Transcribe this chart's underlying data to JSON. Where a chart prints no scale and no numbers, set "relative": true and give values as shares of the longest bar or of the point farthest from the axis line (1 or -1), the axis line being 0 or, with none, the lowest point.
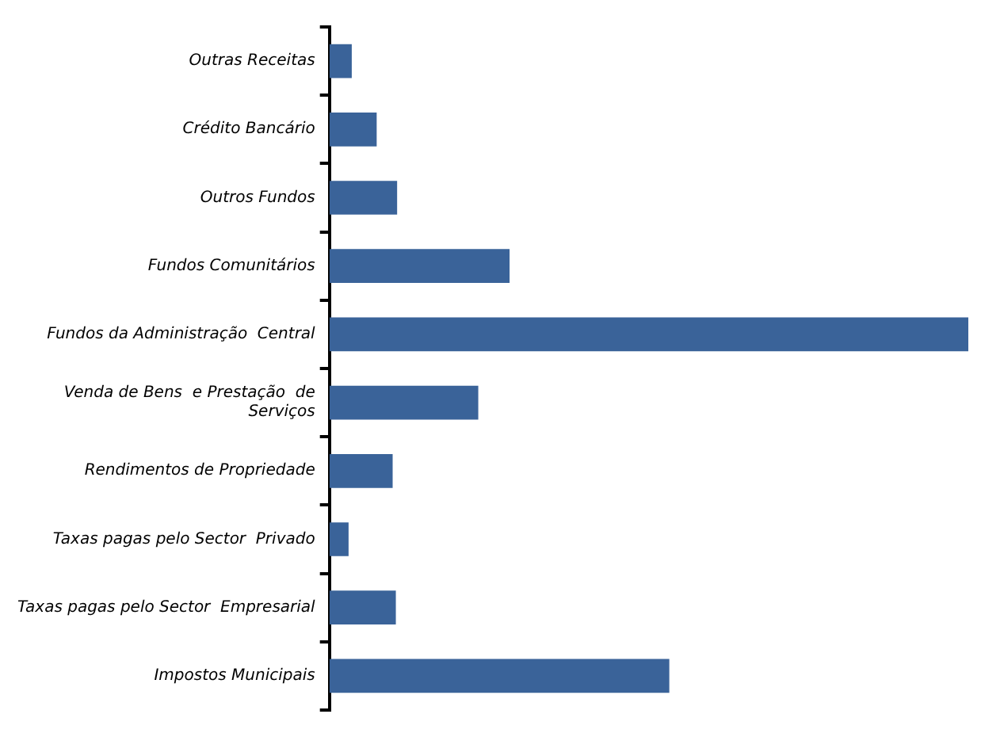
{
  "chart_data": {
    "type": "bar",
    "orientation": "horizontal",
    "relative": true,
    "categories": [
      "Outras Receitas",
      "Crédito Bancário",
      "Outros Fundos",
      "Fundos Comunitários",
      "Fundos da Administração  Central",
      "Venda de Bens  e Prestação  de Serviços",
      "Rendimentos de Propriedade",
      "Taxas pagas pelo Sector  Privado",
      "Taxas pagas pelo Sector  Empresarial",
      "Impostos Municipais"
    ],
    "values": [
      0.035,
      0.074,
      0.106,
      0.282,
      1,
      0.233,
      0.099,
      0.03,
      0.104,
      0.532
    ],
    "color": "#3a6399",
    "grid": false,
    "legend": false
  }
}
